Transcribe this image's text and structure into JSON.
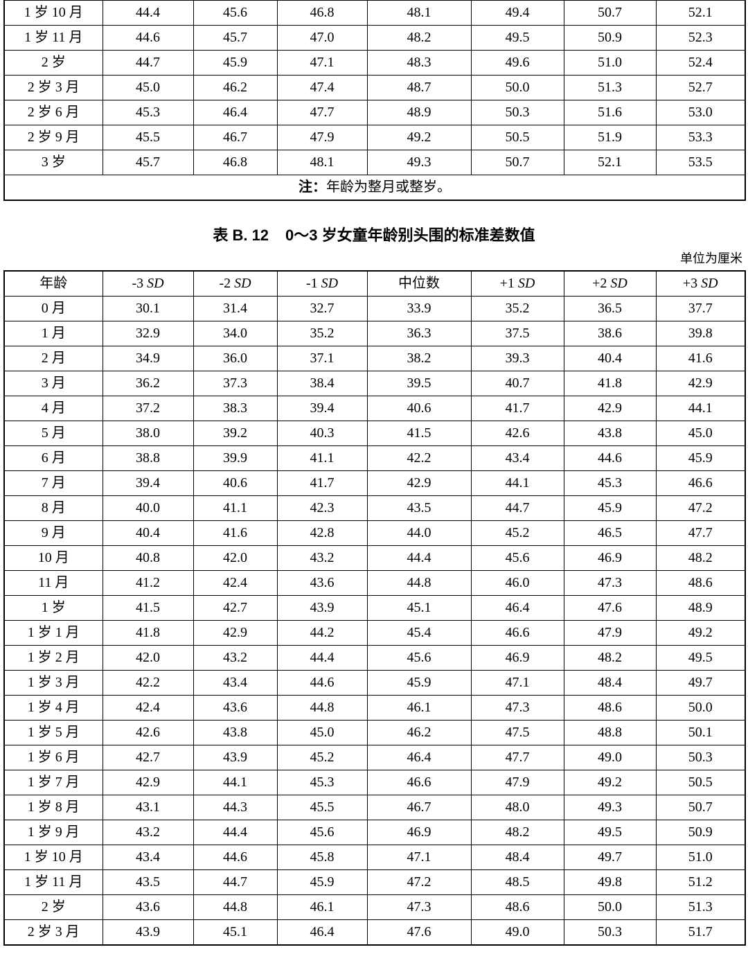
{
  "document": {
    "table_prev": {
      "note_label": "注：",
      "note_text": "年龄为整月或整岁。",
      "rows": [
        {
          "age": "1 岁 10 月",
          "values": [
            "44.4",
            "45.6",
            "46.8",
            "48.1",
            "49.4",
            "50.7",
            "52.1"
          ]
        },
        {
          "age": "1 岁 11 月",
          "values": [
            "44.6",
            "45.7",
            "47.0",
            "48.2",
            "49.5",
            "50.9",
            "52.3"
          ]
        },
        {
          "age": "2 岁",
          "values": [
            "44.7",
            "45.9",
            "47.1",
            "48.3",
            "49.6",
            "51.0",
            "52.4"
          ]
        },
        {
          "age": "2 岁 3 月",
          "values": [
            "45.0",
            "46.2",
            "47.4",
            "48.7",
            "50.0",
            "51.3",
            "52.7"
          ]
        },
        {
          "age": "2 岁 6 月",
          "values": [
            "45.3",
            "46.4",
            "47.7",
            "48.9",
            "50.3",
            "51.6",
            "53.0"
          ]
        },
        {
          "age": "2 岁 9 月",
          "values": [
            "45.5",
            "46.7",
            "47.9",
            "49.2",
            "50.5",
            "51.9",
            "53.3"
          ]
        },
        {
          "age": "3 岁",
          "values": [
            "45.7",
            "46.8",
            "48.1",
            "49.3",
            "50.7",
            "52.1",
            "53.5"
          ]
        }
      ]
    },
    "table_b12": {
      "caption_label": "表 B. 12",
      "caption_text": "0～3 岁女童年龄别头围的标准差数值",
      "unit_label": "单位为厘米",
      "headers": [
        "年龄",
        "-3 SD",
        "-2 SD",
        "-1 SD",
        "中位数",
        "+1 SD",
        "+2 SD",
        "+3 SD"
      ],
      "rows": [
        {
          "age": "0 月",
          "values": [
            "30.1",
            "31.4",
            "32.7",
            "33.9",
            "35.2",
            "36.5",
            "37.7"
          ]
        },
        {
          "age": "1 月",
          "values": [
            "32.9",
            "34.0",
            "35.2",
            "36.3",
            "37.5",
            "38.6",
            "39.8"
          ]
        },
        {
          "age": "2 月",
          "values": [
            "34.9",
            "36.0",
            "37.1",
            "38.2",
            "39.3",
            "40.4",
            "41.6"
          ]
        },
        {
          "age": "3 月",
          "values": [
            "36.2",
            "37.3",
            "38.4",
            "39.5",
            "40.7",
            "41.8",
            "42.9"
          ]
        },
        {
          "age": "4 月",
          "values": [
            "37.2",
            "38.3",
            "39.4",
            "40.6",
            "41.7",
            "42.9",
            "44.1"
          ]
        },
        {
          "age": "5 月",
          "values": [
            "38.0",
            "39.2",
            "40.3",
            "41.5",
            "42.6",
            "43.8",
            "45.0"
          ]
        },
        {
          "age": "6 月",
          "values": [
            "38.8",
            "39.9",
            "41.1",
            "42.2",
            "43.4",
            "44.6",
            "45.9"
          ]
        },
        {
          "age": "7 月",
          "values": [
            "39.4",
            "40.6",
            "41.7",
            "42.9",
            "44.1",
            "45.3",
            "46.6"
          ]
        },
        {
          "age": "8 月",
          "values": [
            "40.0",
            "41.1",
            "42.3",
            "43.5",
            "44.7",
            "45.9",
            "47.2"
          ]
        },
        {
          "age": "9 月",
          "values": [
            "40.4",
            "41.6",
            "42.8",
            "44.0",
            "45.2",
            "46.5",
            "47.7"
          ]
        },
        {
          "age": "10 月",
          "values": [
            "40.8",
            "42.0",
            "43.2",
            "44.4",
            "45.6",
            "46.9",
            "48.2"
          ]
        },
        {
          "age": "11 月",
          "values": [
            "41.2",
            "42.4",
            "43.6",
            "44.8",
            "46.0",
            "47.3",
            "48.6"
          ]
        },
        {
          "age": "1 岁",
          "values": [
            "41.5",
            "42.7",
            "43.9",
            "45.1",
            "46.4",
            "47.6",
            "48.9"
          ]
        },
        {
          "age": "1 岁 1 月",
          "values": [
            "41.8",
            "42.9",
            "44.2",
            "45.4",
            "46.6",
            "47.9",
            "49.2"
          ]
        },
        {
          "age": "1 岁 2 月",
          "values": [
            "42.0",
            "43.2",
            "44.4",
            "45.6",
            "46.9",
            "48.2",
            "49.5"
          ]
        },
        {
          "age": "1 岁 3 月",
          "values": [
            "42.2",
            "43.4",
            "44.6",
            "45.9",
            "47.1",
            "48.4",
            "49.7"
          ]
        },
        {
          "age": "1 岁 4 月",
          "values": [
            "42.4",
            "43.6",
            "44.8",
            "46.1",
            "47.3",
            "48.6",
            "50.0"
          ]
        },
        {
          "age": "1 岁 5 月",
          "values": [
            "42.6",
            "43.8",
            "45.0",
            "46.2",
            "47.5",
            "48.8",
            "50.1"
          ]
        },
        {
          "age": "1 岁 6 月",
          "values": [
            "42.7",
            "43.9",
            "45.2",
            "46.4",
            "47.7",
            "49.0",
            "50.3"
          ]
        },
        {
          "age": "1 岁 7 月",
          "values": [
            "42.9",
            "44.1",
            "45.3",
            "46.6",
            "47.9",
            "49.2",
            "50.5"
          ]
        },
        {
          "age": "1 岁 8 月",
          "values": [
            "43.1",
            "44.3",
            "45.5",
            "46.7",
            "48.0",
            "49.3",
            "50.7"
          ]
        },
        {
          "age": "1 岁 9 月",
          "values": [
            "43.2",
            "44.4",
            "45.6",
            "46.9",
            "48.2",
            "49.5",
            "50.9"
          ]
        },
        {
          "age": "1 岁 10 月",
          "values": [
            "43.4",
            "44.6",
            "45.8",
            "47.1",
            "48.4",
            "49.7",
            "51.0"
          ]
        },
        {
          "age": "1 岁 11 月",
          "values": [
            "43.5",
            "44.7",
            "45.9",
            "47.2",
            "48.5",
            "49.8",
            "51.2"
          ]
        },
        {
          "age": "2 岁",
          "values": [
            "43.6",
            "44.8",
            "46.1",
            "47.3",
            "48.6",
            "50.0",
            "51.3"
          ]
        },
        {
          "age": "2 岁 3 月",
          "values": [
            "43.9",
            "45.1",
            "46.4",
            "47.6",
            "49.0",
            "50.3",
            "51.7"
          ]
        }
      ]
    }
  }
}
